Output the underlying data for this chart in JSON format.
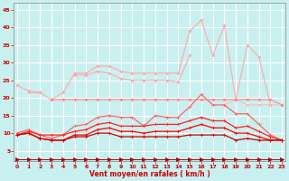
{
  "xlabel": "Vent moyen/en rafales ( km/h )",
  "bg_color": "#c8f0f0",
  "grid_color": "#ffffff",
  "xlim": [
    -0.3,
    23.3
  ],
  "ylim": [
    2,
    47
  ],
  "yticks": [
    5,
    10,
    15,
    20,
    25,
    30,
    35,
    40,
    45
  ],
  "xticks": [
    0,
    1,
    2,
    3,
    4,
    5,
    6,
    7,
    8,
    9,
    10,
    11,
    12,
    13,
    14,
    15,
    16,
    17,
    18,
    19,
    20,
    21,
    22,
    23
  ],
  "series": [
    {
      "color": "#ffaaaa",
      "marker": "D",
      "markersize": 1.5,
      "linewidth": 0.8,
      "y": [
        23.5,
        22.0,
        21.5,
        19.5,
        21.5,
        27.0,
        27.0,
        29.0,
        29.0,
        27.5,
        27.0,
        27.0,
        27.0,
        27.0,
        27.0,
        39.0,
        42.0,
        32.0,
        40.5,
        19.5,
        35.0,
        31.5,
        18.0,
        null
      ]
    },
    {
      "color": "#ffaaaa",
      "marker": "D",
      "markersize": 1.5,
      "linewidth": 0.8,
      "y": [
        null,
        21.5,
        21.5,
        null,
        null,
        26.5,
        26.5,
        27.5,
        27.0,
        25.5,
        25.0,
        25.0,
        25.0,
        25.0,
        24.5,
        32.0,
        null,
        null,
        null,
        null,
        null,
        null,
        null,
        null
      ]
    },
    {
      "color": "#ffbbbb",
      "marker": "D",
      "markersize": 1.5,
      "linewidth": 0.8,
      "y": [
        null,
        null,
        null,
        null,
        null,
        null,
        null,
        null,
        null,
        null,
        null,
        null,
        null,
        null,
        null,
        null,
        null,
        null,
        18.0,
        19.5,
        18.0,
        18.0,
        18.0,
        18.0
      ]
    },
    {
      "color": "#ff8888",
      "marker": "D",
      "markersize": 1.5,
      "linewidth": 0.8,
      "y": [
        null,
        null,
        null,
        19.5,
        19.5,
        19.5,
        19.5,
        19.5,
        19.5,
        19.5,
        19.5,
        19.5,
        19.5,
        19.5,
        19.5,
        19.5,
        19.5,
        19.5,
        19.5,
        19.5,
        19.5,
        19.5,
        19.5,
        18.0
      ]
    },
    {
      "color": "#ff6666",
      "marker": "+",
      "markersize": 3,
      "linewidth": 0.9,
      "y": [
        10.0,
        11.0,
        9.5,
        8.5,
        9.5,
        12.0,
        12.5,
        14.5,
        15.0,
        14.5,
        14.5,
        12.0,
        15.0,
        14.5,
        14.5,
        17.5,
        21.0,
        18.0,
        18.0,
        15.5,
        15.5,
        12.5,
        9.5,
        8.0
      ]
    },
    {
      "color": "#ff2222",
      "marker": "+",
      "markersize": 3,
      "linewidth": 0.9,
      "y": [
        9.5,
        10.5,
        9.5,
        9.5,
        9.5,
        10.5,
        11.0,
        12.5,
        13.0,
        12.0,
        12.0,
        12.0,
        12.5,
        12.5,
        12.5,
        13.5,
        14.5,
        13.5,
        13.5,
        11.5,
        12.0,
        10.5,
        9.0,
        8.0
      ]
    },
    {
      "color": "#ff0000",
      "marker": "+",
      "markersize": 3,
      "linewidth": 0.9,
      "y": [
        9.5,
        10.0,
        8.5,
        8.0,
        8.0,
        9.5,
        9.5,
        11.0,
        11.5,
        10.5,
        10.5,
        10.0,
        10.5,
        10.5,
        10.5,
        11.5,
        12.5,
        11.5,
        11.5,
        10.0,
        10.0,
        9.0,
        8.0,
        8.0
      ]
    },
    {
      "color": "#cc0000",
      "marker": "+",
      "markersize": 3,
      "linewidth": 0.9,
      "y": [
        9.5,
        10.0,
        8.5,
        8.0,
        8.0,
        9.0,
        9.0,
        10.0,
        10.0,
        9.0,
        9.0,
        9.0,
        9.0,
        9.0,
        9.0,
        9.5,
        9.5,
        9.5,
        9.5,
        8.0,
        8.5,
        8.0,
        8.0,
        8.0
      ]
    },
    {
      "color": "#aa0000",
      "marker": ">",
      "markersize": 3,
      "linewidth": 0.7,
      "y": [
        2.5,
        2.5,
        2.5,
        2.5,
        2.5,
        2.5,
        2.5,
        2.5,
        2.5,
        2.5,
        2.5,
        2.5,
        2.5,
        2.5,
        2.5,
        2.5,
        2.5,
        2.5,
        2.5,
        2.5,
        2.5,
        2.5,
        2.5,
        2.5
      ]
    }
  ]
}
